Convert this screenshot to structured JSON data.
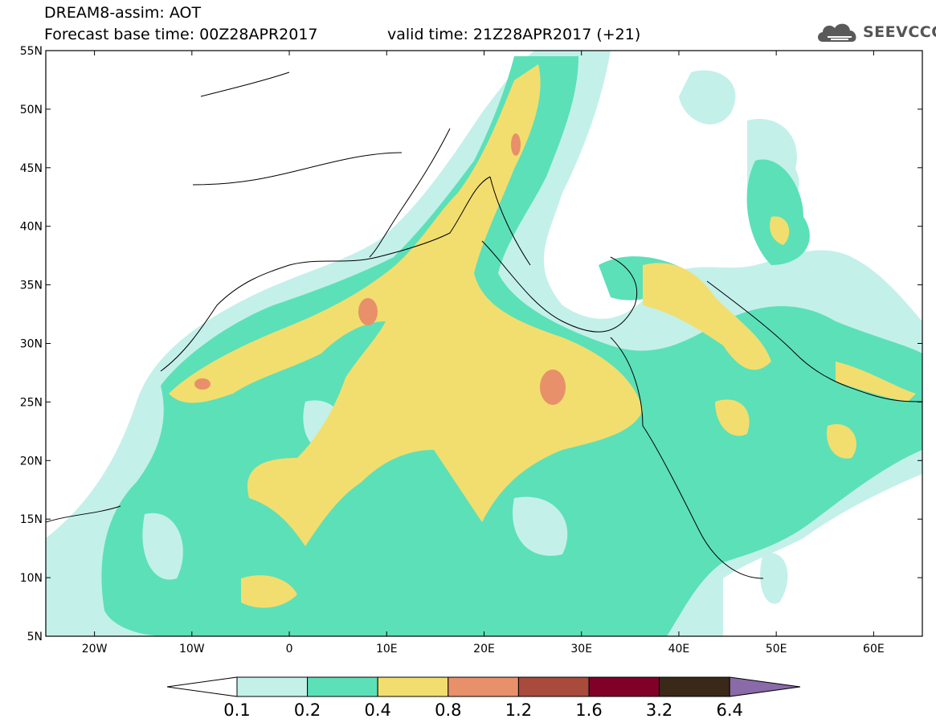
{
  "header": {
    "title": "DREAM8-assim: AOT",
    "base_time": "Forecast base time: 00Z28APR2017",
    "valid_time": "valid time: 21Z28APR2017 (+21)",
    "logo_text": "SEEVCCC"
  },
  "map": {
    "lon_range": [
      -25,
      65
    ],
    "lat_range": [
      5,
      55
    ],
    "lat_labels": [
      "55N",
      "50N",
      "45N",
      "40N",
      "35N",
      "30N",
      "25N",
      "20N",
      "15N",
      "10N",
      "5N"
    ],
    "lon_labels": [
      "20W",
      "10W",
      "0",
      "10E",
      "20E",
      "30E",
      "40E",
      "50E",
      "60E"
    ]
  },
  "legend": {
    "values": [
      "0.1",
      "0.2",
      "0.4",
      "0.8",
      "1.2",
      "1.6",
      "3.2",
      "6.4"
    ],
    "colors": [
      "#c4f0ea",
      "#5ce0b8",
      "#f2de6e",
      "#e8906a",
      "#a84a3c",
      "#80002a",
      "#3a2818",
      "#8a6aa8"
    ]
  },
  "colors": {
    "class1": "#c4f0ea",
    "class2": "#5ce0b8",
    "class3": "#f2de6e",
    "class4": "#e8906a"
  }
}
